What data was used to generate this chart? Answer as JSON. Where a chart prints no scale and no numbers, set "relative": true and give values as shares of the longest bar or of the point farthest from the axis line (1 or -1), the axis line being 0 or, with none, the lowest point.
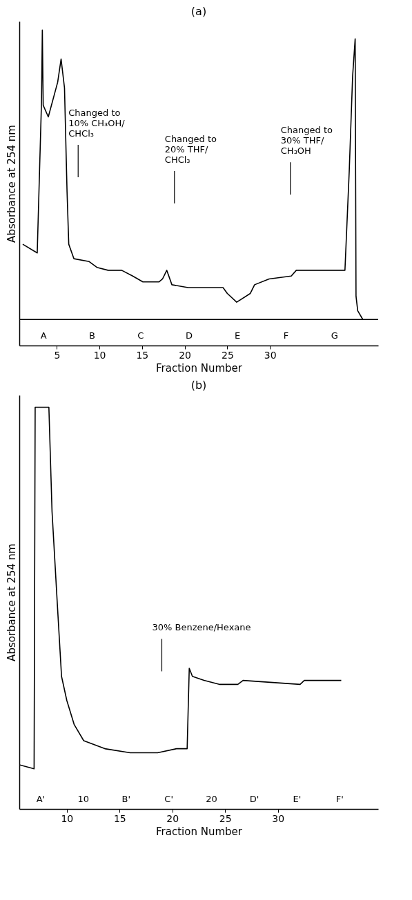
{
  "chart_data": [
    {
      "type": "line",
      "title": "(a)",
      "xlabel": "Fraction Number",
      "ylabel": "Absorbance at 254 nm",
      "relative": true,
      "color": "#000000",
      "x": [
        1.0,
        2.7,
        3.2,
        3.3,
        3.4,
        4.0,
        5.1,
        5.5,
        5.9,
        6.2,
        6.4,
        7.0,
        8.8,
        9.7,
        11.0,
        12.6,
        13.9,
        15.1,
        17.0,
        17.4,
        17.9,
        18.5,
        20.4,
        24.5,
        25.0,
        26.1,
        27.7,
        28.2,
        29.9,
        32.5,
        33.1,
        38.8,
        39.3,
        39.7,
        40.0,
        40.1,
        40.3,
        40.9
      ],
      "values": [
        0.26,
        0.23,
        0.75,
        1.0,
        0.74,
        0.7,
        0.82,
        0.9,
        0.8,
        0.44,
        0.26,
        0.21,
        0.2,
        0.18,
        0.17,
        0.17,
        0.15,
        0.13,
        0.13,
        0.14,
        0.17,
        0.12,
        0.11,
        0.11,
        0.09,
        0.06,
        0.09,
        0.12,
        0.14,
        0.15,
        0.17,
        0.17,
        0.51,
        0.84,
        0.97,
        0.08,
        0.03,
        0.0
      ],
      "xlim": [
        0.6,
        42.7
      ],
      "xticks": [
        5,
        10,
        15,
        20,
        25,
        30
      ],
      "ref_lines": [
        {
          "axis": "y",
          "value": 0
        },
        {
          "axis": "x",
          "value": 7.5,
          "label": "Changed to\n10% CH₃OH/\nCHCl₃"
        },
        {
          "axis": "x",
          "value": 18.8,
          "label": "Changed to\n20% THF/\nCHCl₃"
        },
        {
          "axis": "x",
          "value": 32.4,
          "label": "Changed to\n30% THF/\nCH₃OH"
        }
      ],
      "annotations": [
        "A",
        "B",
        "C",
        "D",
        "E",
        "F",
        "G"
      ]
    },
    {
      "type": "line",
      "title": "(b)",
      "xlabel": "Fraction Number",
      "ylabel": "Absorbance at 254 nm",
      "relative": true,
      "color": "#000000",
      "x": [
        5.5,
        6.9,
        7.0,
        8.3,
        8.6,
        9.1,
        9.5,
        10.0,
        10.7,
        11.6,
        13.6,
        16.0,
        18.6,
        20.4,
        20.6,
        21.4,
        21.6,
        21.9,
        23.0,
        24.5,
        26.2,
        26.7,
        32.1,
        32.5,
        36.0
      ],
      "values": [
        0.11,
        0.1,
        1.0,
        1.0,
        0.74,
        0.51,
        0.33,
        0.27,
        0.21,
        0.17,
        0.15,
        0.14,
        0.14,
        0.15,
        0.15,
        0.15,
        0.35,
        0.33,
        0.32,
        0.31,
        0.31,
        0.32,
        0.31,
        0.32,
        0.32
      ],
      "xlim": [
        5.5,
        39.5
      ],
      "xticks": [
        10,
        15,
        20,
        25,
        30
      ],
      "ref_lines": [
        {
          "axis": "x",
          "value": 19.0,
          "label": "30% Benzene/Hexane"
        }
      ],
      "annotations": [
        "A'",
        "10",
        "B'",
        "C'",
        "20",
        "D'",
        "E'",
        "F'"
      ]
    }
  ]
}
